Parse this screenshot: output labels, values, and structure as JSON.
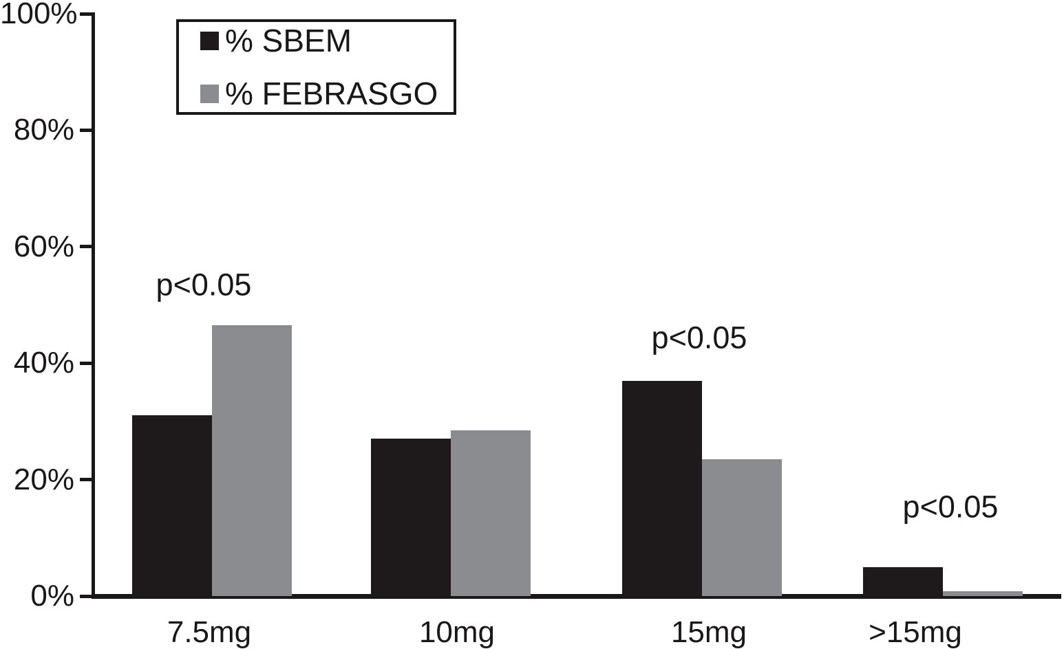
{
  "chart_data": {
    "type": "bar",
    "categories": [
      "7.5mg",
      "10mg",
      "15mg",
      ">15mg"
    ],
    "series": [
      {
        "name": "% SBEM",
        "color": "#1e1a1b",
        "values": [
          31,
          27,
          37,
          5
        ]
      },
      {
        "name": "% FEBRASGO",
        "color": "#8a8c8f",
        "values": [
          46.5,
          28.5,
          23.5,
          0.8
        ]
      }
    ],
    "annotations": [
      {
        "text": "p<0.05",
        "category": "7.5mg"
      },
      {
        "text": "p<0.05",
        "category": "15mg"
      },
      {
        "text": "p<0.05",
        "category": ">15mg"
      }
    ],
    "y_axis": {
      "range": [
        0,
        100
      ],
      "ticks": [
        {
          "value": 0,
          "label": "0%"
        },
        {
          "value": 20,
          "label": "20%"
        },
        {
          "value": 40,
          "label": "40%"
        },
        {
          "value": 60,
          "label": "60%"
        },
        {
          "value": 80,
          "label": "80%"
        },
        {
          "value": 100,
          "label": "100%"
        }
      ]
    },
    "title": "",
    "xlabel": "",
    "ylabel": "",
    "grid": false,
    "legend_position": "top-left"
  }
}
